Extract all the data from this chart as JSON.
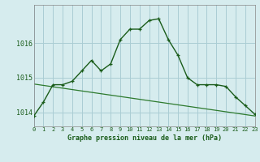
{
  "hours": [
    0,
    1,
    2,
    3,
    4,
    5,
    6,
    7,
    8,
    9,
    10,
    11,
    12,
    13,
    14,
    15,
    16,
    17,
    18,
    19,
    20,
    21,
    22,
    23
  ],
  "pressure_main": [
    1013.9,
    1014.3,
    1014.8,
    1014.8,
    1014.9,
    1015.2,
    1015.5,
    1015.2,
    1015.4,
    1016.1,
    1016.4,
    1016.4,
    1016.65,
    1016.7,
    1016.1,
    1015.65,
    1015.0,
    1014.8,
    1014.8,
    1014.8,
    1014.75,
    1014.45,
    1014.2,
    1013.95
  ],
  "pressure_ref": [
    1014.82,
    1014.78,
    1014.74,
    1014.7,
    1014.66,
    1014.62,
    1014.58,
    1014.54,
    1014.5,
    1014.46,
    1014.42,
    1014.38,
    1014.34,
    1014.3,
    1014.26,
    1014.22,
    1014.18,
    1014.14,
    1014.1,
    1014.06,
    1014.02,
    1013.98,
    1013.94,
    1013.9
  ],
  "ylim": [
    1013.6,
    1017.1
  ],
  "yticks": [
    1014,
    1015,
    1016
  ],
  "bg_color": "#d6ecee",
  "grid_color": "#aacdd4",
  "line_color_dark": "#1a5c1a",
  "line_color_light": "#2d7a2d",
  "xlabel": "Graphe pression niveau de la mer (hPa)"
}
